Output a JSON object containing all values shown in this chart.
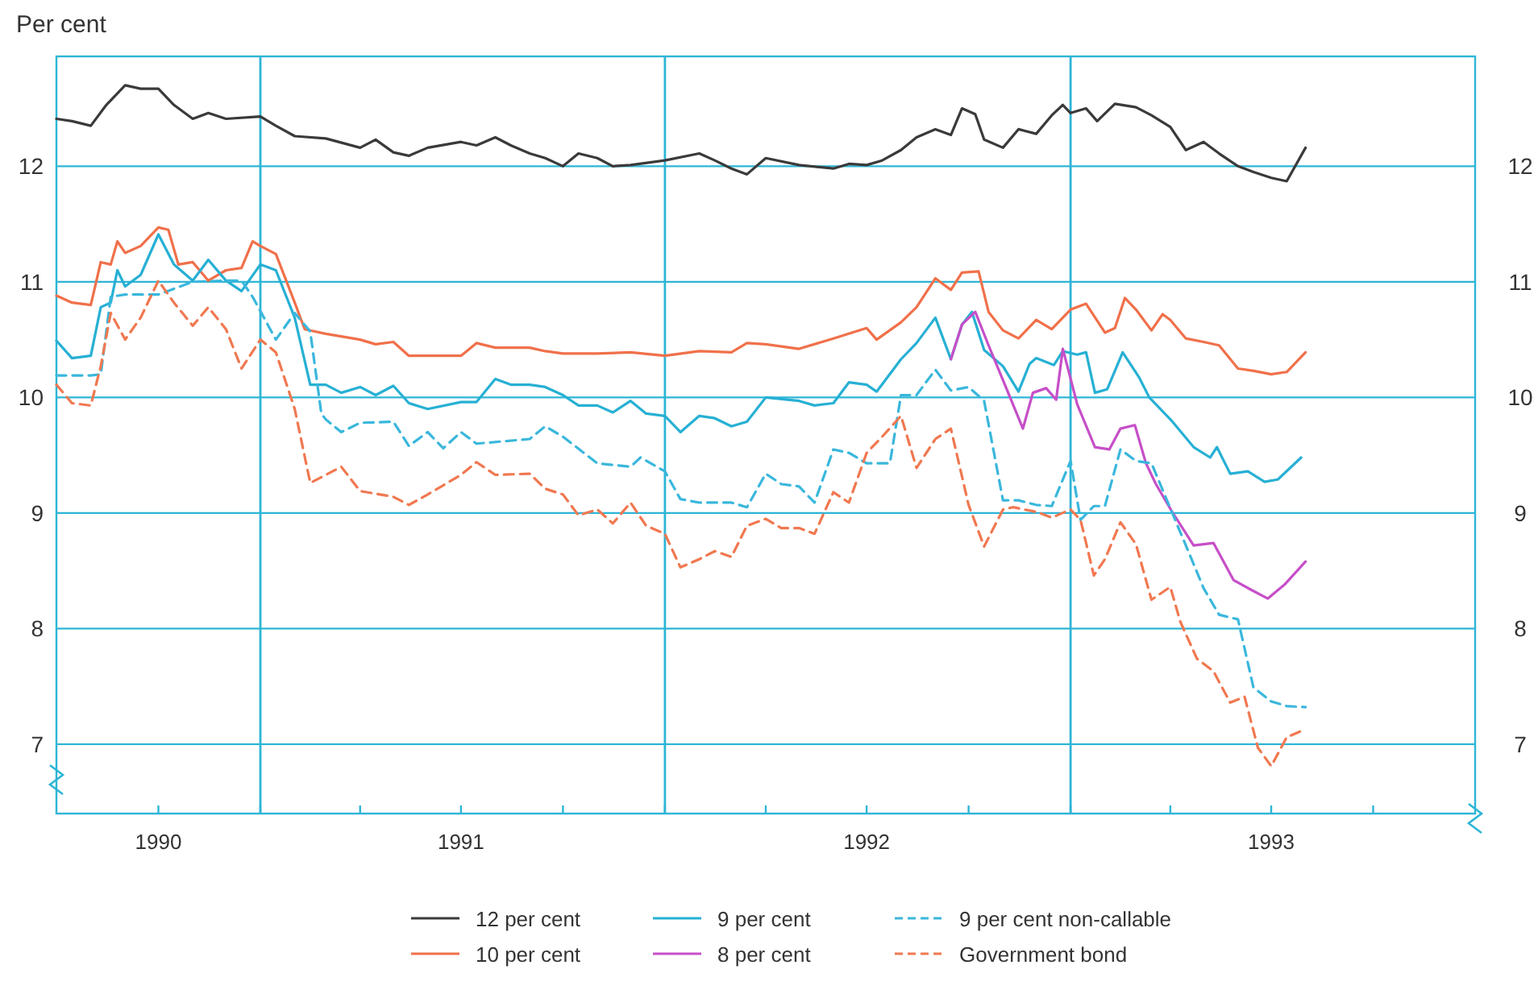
{
  "chart_data": {
    "type": "line",
    "ylabel": "Per cent",
    "grid": "y",
    "legend": "bottom",
    "marker": "none",
    "xlim": [
      "1990-07-01",
      "1994-01-01"
    ],
    "xticks": [
      {
        "value": "1990-10-01",
        "label": "1990"
      },
      {
        "value": "1991-01-01",
        "label": null
      },
      {
        "value": "1991-04-01",
        "label": null
      },
      {
        "value": "1991-07-01",
        "label": "1991"
      },
      {
        "value": "1991-10-01",
        "label": null
      },
      {
        "value": "1992-01-01",
        "label": null
      },
      {
        "value": "1992-04-01",
        "label": null
      },
      {
        "value": "1992-07-01",
        "label": "1992"
      },
      {
        "value": "1992-10-01",
        "label": null
      },
      {
        "value": "1993-01-01",
        "label": null
      },
      {
        "value": "1993-04-01",
        "label": null
      },
      {
        "value": "1993-07-01",
        "label": "1993"
      },
      {
        "value": "1993-10-01",
        "label": null
      }
    ],
    "ylim": [
      6.4,
      12.95
    ],
    "yticks": [
      7,
      8,
      9,
      10,
      11,
      12
    ],
    "y2lim": [
      6.4,
      12.95
    ],
    "y2ticks": [
      7,
      8,
      9,
      10,
      11,
      12
    ],
    "ref_lines": [
      {
        "axis": "x",
        "value": "1991-01-01",
        "color": "#2db5d6"
      },
      {
        "axis": "x",
        "value": "1992-01-01",
        "color": "#2db5d6"
      },
      {
        "axis": "x",
        "value": "1993-01-01",
        "color": "#2db5d6"
      }
    ],
    "series": [
      {
        "name": "12 per cent",
        "color": "#3a3a3a",
        "line_style": "solid",
        "x": [
          "1990-07-01",
          "1990-07-15",
          "1990-08-01",
          "1990-08-15",
          "1990-09-01",
          "1990-09-15",
          "1990-10-01",
          "1990-10-15",
          "1990-11-01",
          "1990-11-15",
          "1990-12-01",
          "1991-01-01",
          "1991-01-15",
          "1991-02-01",
          "1991-03-01",
          "1991-04-01",
          "1991-04-15",
          "1991-05-01",
          "1991-05-15",
          "1991-06-01",
          "1991-07-01",
          "1991-07-15",
          "1991-08-01",
          "1991-08-15",
          "1991-09-01",
          "1991-09-15",
          "1991-10-01",
          "1991-10-15",
          "1991-11-01",
          "1991-11-15",
          "1991-12-01",
          "1992-01-01",
          "1992-02-01",
          "1992-02-15",
          "1992-03-01",
          "1992-03-15",
          "1992-04-01",
          "1992-05-01",
          "1992-06-01",
          "1992-06-15",
          "1992-07-01",
          "1992-07-15",
          "1992-08-01",
          "1992-08-15",
          "1992-09-01",
          "1992-09-15",
          "1992-09-25",
          "1992-10-07",
          "1992-10-15",
          "1992-11-01",
          "1992-11-15",
          "1992-12-01",
          "1992-12-15",
          "1992-12-25",
          "1993-01-01",
          "1993-01-15",
          "1993-01-25",
          "1993-02-10",
          "1993-03-01",
          "1993-03-15",
          "1993-04-01",
          "1993-04-15",
          "1993-05-01",
          "1993-05-15",
          "1993-06-01",
          "1993-06-15",
          "1993-07-01",
          "1993-07-15",
          "1993-08-01"
        ],
        "values": [
          12.41,
          12.39,
          12.35,
          12.53,
          12.7,
          12.67,
          12.67,
          12.53,
          12.41,
          12.46,
          12.41,
          12.43,
          12.35,
          12.26,
          12.24,
          12.16,
          12.23,
          12.12,
          12.09,
          12.16,
          12.21,
          12.18,
          12.25,
          12.18,
          12.11,
          12.07,
          12.0,
          12.11,
          12.07,
          12.0,
          12.01,
          12.05,
          12.11,
          12.05,
          11.98,
          11.93,
          12.07,
          12.01,
          11.98,
          12.02,
          12.01,
          12.05,
          12.14,
          12.25,
          12.32,
          12.27,
          12.5,
          12.45,
          12.23,
          12.16,
          12.32,
          12.28,
          12.44,
          12.53,
          12.46,
          12.5,
          12.39,
          12.54,
          12.51,
          12.44,
          12.34,
          12.14,
          12.21,
          12.11,
          12.0,
          11.95,
          11.9,
          11.87,
          12.16
        ]
      },
      {
        "name": "10 per cent",
        "color": "#f0704a",
        "line_style": "solid",
        "x": [
          "1990-07-01",
          "1990-07-15",
          "1990-08-01",
          "1990-08-10",
          "1990-08-19",
          "1990-08-25",
          "1990-09-01",
          "1990-09-15",
          "1990-10-01",
          "1990-10-10",
          "1990-10-19",
          "1990-11-01",
          "1990-11-15",
          "1990-12-01",
          "1990-12-15",
          "1990-12-25",
          "1991-01-01",
          "1991-01-15",
          "1991-02-01",
          "1991-02-10",
          "1991-03-01",
          "1991-04-01",
          "1991-04-15",
          "1991-05-01",
          "1991-05-15",
          "1991-06-01",
          "1991-07-01",
          "1991-07-15",
          "1991-08-01",
          "1991-09-01",
          "1991-09-15",
          "1991-10-01",
          "1991-11-01",
          "1991-12-01",
          "1992-01-01",
          "1992-02-01",
          "1992-03-01",
          "1992-03-15",
          "1992-04-01",
          "1992-05-01",
          "1992-06-01",
          "1992-07-01",
          "1992-07-10",
          "1992-08-01",
          "1992-08-15",
          "1992-09-01",
          "1992-09-15",
          "1992-09-25",
          "1992-10-10",
          "1992-10-19",
          "1992-11-01",
          "1992-11-15",
          "1992-12-01",
          "1992-12-15",
          "1993-01-01",
          "1993-01-15",
          "1993-02-01",
          "1993-02-10",
          "1993-02-19",
          "1993-03-01",
          "1993-03-15",
          "1993-03-25",
          "1993-04-01",
          "1993-04-15",
          "1993-05-01",
          "1993-05-15",
          "1993-06-01",
          "1993-06-15",
          "1993-07-01",
          "1993-07-15",
          "1993-08-01"
        ],
        "values": [
          10.88,
          10.82,
          10.8,
          11.17,
          11.15,
          11.35,
          11.25,
          11.31,
          11.47,
          11.45,
          11.15,
          11.17,
          11.01,
          11.1,
          11.12,
          11.35,
          11.31,
          11.24,
          10.82,
          10.59,
          10.55,
          10.5,
          10.46,
          10.48,
          10.36,
          10.36,
          10.36,
          10.47,
          10.43,
          10.43,
          10.4,
          10.38,
          10.38,
          10.39,
          10.36,
          10.4,
          10.39,
          10.47,
          10.46,
          10.42,
          10.51,
          10.6,
          10.5,
          10.65,
          10.78,
          11.03,
          10.93,
          11.08,
          11.09,
          10.74,
          10.58,
          10.51,
          10.67,
          10.59,
          10.76,
          10.81,
          10.56,
          10.6,
          10.86,
          10.76,
          10.58,
          10.72,
          10.67,
          10.51,
          10.48,
          10.45,
          10.25,
          10.23,
          10.2,
          10.22,
          10.39
        ]
      },
      {
        "name": "9 per cent",
        "color": "#27b0d4",
        "line_style": "solid",
        "x": [
          "1990-07-01",
          "1990-07-15",
          "1990-08-01",
          "1990-08-10",
          "1990-08-19",
          "1990-08-25",
          "1990-09-01",
          "1990-09-15",
          "1990-10-01",
          "1990-10-15",
          "1990-11-01",
          "1990-11-15",
          "1990-12-01",
          "1990-12-15",
          "1991-01-01",
          "1991-01-15",
          "1991-02-01",
          "1991-02-15",
          "1991-03-01",
          "1991-03-15",
          "1991-04-01",
          "1991-04-15",
          "1991-05-01",
          "1991-05-15",
          "1991-06-01",
          "1991-07-01",
          "1991-07-15",
          "1991-08-01",
          "1991-08-15",
          "1991-09-01",
          "1991-09-15",
          "1991-10-01",
          "1991-10-15",
          "1991-11-01",
          "1991-11-15",
          "1991-12-01",
          "1991-12-15",
          "1992-01-01",
          "1992-01-15",
          "1992-02-01",
          "1992-02-15",
          "1992-03-01",
          "1992-03-15",
          "1992-04-01",
          "1992-05-01",
          "1992-05-15",
          "1992-06-01",
          "1992-06-15",
          "1992-07-01",
          "1992-07-10",
          "1992-08-01",
          "1992-08-15",
          "1992-09-01",
          "1992-09-15",
          "1992-09-25",
          "1992-10-04",
          "1992-10-15",
          "1992-11-01",
          "1992-11-15",
          "1992-11-25",
          "1992-12-01",
          "1992-12-17",
          "1992-12-25",
          "1993-01-07",
          "1993-01-15",
          "1993-01-23",
          "1993-02-03",
          "1993-02-17",
          "1993-03-04",
          "1993-03-13",
          "1993-04-02",
          "1993-04-22",
          "1993-05-07",
          "1993-05-13",
          "1993-05-25",
          "1993-06-10",
          "1993-06-25",
          "1993-07-07",
          "1993-07-28"
        ],
        "values": [
          10.49,
          10.34,
          10.36,
          10.78,
          10.82,
          11.1,
          10.96,
          11.06,
          11.41,
          11.15,
          11.01,
          11.19,
          11.01,
          10.92,
          11.15,
          11.1,
          10.69,
          10.11,
          10.11,
          10.04,
          10.09,
          10.02,
          10.1,
          9.95,
          9.9,
          9.96,
          9.96,
          10.16,
          10.11,
          10.11,
          10.09,
          10.02,
          9.93,
          9.93,
          9.87,
          9.97,
          9.86,
          9.84,
          9.7,
          9.84,
          9.82,
          9.75,
          9.79,
          10.0,
          9.97,
          9.93,
          9.95,
          10.13,
          10.11,
          10.05,
          10.33,
          10.47,
          10.69,
          10.33,
          10.63,
          10.74,
          10.41,
          10.27,
          10.05,
          10.29,
          10.34,
          10.28,
          10.4,
          10.37,
          10.39,
          10.04,
          10.07,
          10.39,
          10.17,
          10.0,
          9.8,
          9.57,
          9.48,
          9.57,
          9.34,
          9.36,
          9.27,
          9.29,
          9.48
        ]
      },
      {
        "name": "8 per cent",
        "color": "#c64fc8",
        "line_style": "solid",
        "x": [
          "1992-09-15",
          "1992-09-25",
          "1992-10-07",
          "1992-10-19",
          "1992-11-01",
          "1992-11-19",
          "1992-11-28",
          "1992-12-10",
          "1992-12-19",
          "1992-12-25",
          "1993-01-07",
          "1993-01-23",
          "1993-02-05",
          "1993-02-15",
          "1993-02-28",
          "1993-03-10",
          "1993-03-19",
          "1993-04-02",
          "1993-04-22",
          "1993-05-10",
          "1993-05-28",
          "1993-06-14",
          "1993-06-28",
          "1993-07-13",
          "1993-08-01"
        ],
        "values": [
          10.33,
          10.63,
          10.74,
          10.45,
          10.15,
          9.73,
          10.04,
          10.08,
          9.98,
          10.42,
          9.94,
          9.57,
          9.55,
          9.73,
          9.76,
          9.43,
          9.25,
          9.02,
          8.72,
          8.74,
          8.42,
          8.33,
          8.26,
          8.38,
          8.58
        ]
      },
      {
        "name": "9 per cent non-callable",
        "color": "#3ab7dc",
        "line_style": "dashed",
        "x": [
          "1990-07-01",
          "1990-08-01",
          "1990-08-10",
          "1990-08-19",
          "1990-09-01",
          "1990-10-01",
          "1990-11-01",
          "1990-12-01",
          "1990-12-15",
          "1990-12-25",
          "1991-01-15",
          "1991-02-01",
          "1991-02-15",
          "1991-02-25",
          "1991-03-01",
          "1991-03-15",
          "1991-04-01",
          "1991-05-01",
          "1991-05-15",
          "1991-06-01",
          "1991-06-15",
          "1991-07-01",
          "1991-07-15",
          "1991-09-01",
          "1991-09-15",
          "1991-10-01",
          "1991-11-01",
          "1991-12-01",
          "1991-12-10",
          "1992-01-01",
          "1992-01-15",
          "1992-02-01",
          "1992-03-01",
          "1992-03-15",
          "1992-04-01",
          "1992-04-15",
          "1992-05-01",
          "1992-05-15",
          "1992-06-01",
          "1992-06-15",
          "1992-07-01",
          "1992-07-22",
          "1992-08-01",
          "1992-08-15",
          "1992-09-01",
          "1992-09-15",
          "1992-10-01",
          "1992-10-15",
          "1992-11-01",
          "1992-11-15",
          "1992-12-01",
          "1992-12-15",
          "1993-01-01",
          "1993-01-10",
          "1993-01-22",
          "1993-02-01",
          "1993-02-15",
          "1993-03-01",
          "1993-03-15",
          "1993-04-01",
          "1993-04-15",
          "1993-05-01",
          "1993-05-15",
          "1993-06-01",
          "1993-06-15",
          "1993-07-01",
          "1993-07-15",
          "1993-08-01"
        ],
        "values": [
          10.19,
          10.19,
          10.2,
          10.87,
          10.89,
          10.89,
          11.0,
          11.01,
          11.01,
          10.87,
          10.5,
          10.73,
          10.57,
          9.86,
          9.81,
          9.7,
          9.78,
          9.79,
          9.58,
          9.7,
          9.56,
          9.7,
          9.6,
          9.64,
          9.75,
          9.66,
          9.43,
          9.4,
          9.48,
          9.36,
          9.12,
          9.09,
          9.09,
          9.05,
          9.34,
          9.25,
          9.23,
          9.09,
          9.55,
          9.52,
          9.43,
          9.43,
          10.02,
          10.02,
          10.24,
          10.06,
          10.09,
          9.97,
          9.11,
          9.11,
          9.07,
          9.06,
          9.45,
          8.94,
          9.06,
          9.06,
          9.55,
          9.45,
          9.43,
          9.04,
          8.72,
          8.35,
          8.12,
          8.08,
          7.49,
          7.37,
          7.33,
          7.32
        ]
      },
      {
        "name": "Government bond",
        "color": "#f07850",
        "line_style": "dashed",
        "x": [
          "1990-07-01",
          "1990-07-15",
          "1990-08-01",
          "1990-08-10",
          "1990-08-19",
          "1990-09-01",
          "1990-09-15",
          "1990-10-01",
          "1990-10-15",
          "1990-11-01",
          "1990-11-15",
          "1990-12-01",
          "1990-12-15",
          "1991-01-01",
          "1991-01-15",
          "1991-02-01",
          "1991-02-15",
          "1991-03-01",
          "1991-03-15",
          "1991-04-01",
          "1991-05-01",
          "1991-05-15",
          "1991-06-01",
          "1991-07-01",
          "1991-07-15",
          "1991-08-01",
          "1991-09-01",
          "1991-09-15",
          "1991-10-01",
          "1991-10-15",
          "1991-11-01",
          "1991-11-15",
          "1991-12-01",
          "1991-12-15",
          "1992-01-01",
          "1992-01-15",
          "1992-02-01",
          "1992-02-15",
          "1992-03-01",
          "1992-03-15",
          "1992-04-01",
          "1992-04-15",
          "1992-05-01",
          "1992-05-15",
          "1992-06-01",
          "1992-06-15",
          "1992-07-01",
          "1992-07-15",
          "1992-08-01",
          "1992-08-15",
          "1992-09-01",
          "1992-09-15",
          "1992-10-01",
          "1992-10-15",
          "1992-11-01",
          "1992-11-10",
          "1992-12-01",
          "1992-12-15",
          "1993-01-01",
          "1993-01-10",
          "1993-01-22",
          "1993-02-01",
          "1993-02-15",
          "1993-03-01",
          "1993-03-15",
          "1993-04-01",
          "1993-04-10",
          "1993-04-25",
          "1993-05-10",
          "1993-05-25",
          "1993-06-07",
          "1993-06-19",
          "1993-07-01",
          "1993-07-15",
          "1993-08-01"
        ],
        "values": [
          10.11,
          9.95,
          9.93,
          10.27,
          10.73,
          10.5,
          10.69,
          11.01,
          10.82,
          10.62,
          10.78,
          10.59,
          10.25,
          10.5,
          10.39,
          9.9,
          9.26,
          9.33,
          9.4,
          9.19,
          9.14,
          9.07,
          9.16,
          9.33,
          9.44,
          9.33,
          9.34,
          9.21,
          9.16,
          8.98,
          9.03,
          8.91,
          9.09,
          8.89,
          8.82,
          8.53,
          8.6,
          8.67,
          8.62,
          8.89,
          8.95,
          8.87,
          8.87,
          8.82,
          9.18,
          9.09,
          9.52,
          9.66,
          9.84,
          9.39,
          9.64,
          9.73,
          9.07,
          8.71,
          9.03,
          9.05,
          9.01,
          8.96,
          9.03,
          8.94,
          8.46,
          8.6,
          8.92,
          8.73,
          8.25,
          8.36,
          8.06,
          7.74,
          7.63,
          7.36,
          7.41,
          6.97,
          6.81,
          7.06,
          7.13
        ]
      }
    ]
  }
}
